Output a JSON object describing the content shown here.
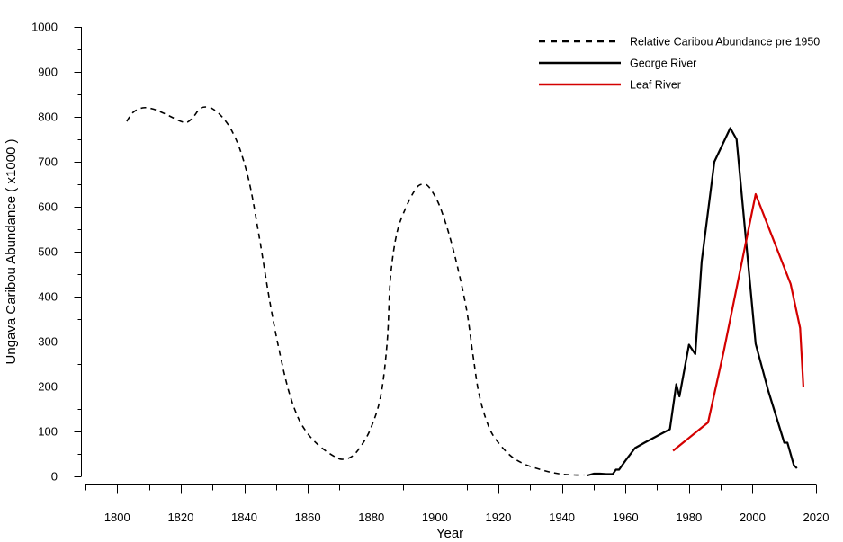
{
  "chart_data": {
    "type": "line",
    "title": "",
    "xlabel": "Year",
    "ylabel": "Ungava Caribou Abundance ( x1000 )",
    "xlim": [
      1790,
      2020
    ],
    "ylim": [
      0,
      1000
    ],
    "x_ticks": [
      1800,
      1820,
      1840,
      1860,
      1880,
      1900,
      1920,
      1940,
      1960,
      1980,
      2000,
      2020
    ],
    "y_ticks": [
      0,
      100,
      200,
      300,
      400,
      500,
      600,
      700,
      800,
      900,
      1000
    ],
    "grid": false,
    "legend_position": "top-right",
    "series": [
      {
        "name": "Relative Caribou Abundance pre 1950",
        "color": "#000000",
        "style": "dashed",
        "smooth": true,
        "points": [
          [
            1803,
            790
          ],
          [
            1805,
            810
          ],
          [
            1808,
            820
          ],
          [
            1811,
            818
          ],
          [
            1814,
            810
          ],
          [
            1817,
            800
          ],
          [
            1820,
            790
          ],
          [
            1822,
            788
          ],
          [
            1824,
            800
          ],
          [
            1826,
            818
          ],
          [
            1828,
            822
          ],
          [
            1830,
            818
          ],
          [
            1833,
            800
          ],
          [
            1836,
            770
          ],
          [
            1839,
            720
          ],
          [
            1842,
            640
          ],
          [
            1845,
            520
          ],
          [
            1848,
            390
          ],
          [
            1851,
            280
          ],
          [
            1854,
            190
          ],
          [
            1857,
            130
          ],
          [
            1860,
            95
          ],
          [
            1863,
            72
          ],
          [
            1866,
            55
          ],
          [
            1869,
            42
          ],
          [
            1871,
            38
          ],
          [
            1874,
            45
          ],
          [
            1877,
            70
          ],
          [
            1880,
            110
          ],
          [
            1883,
            180
          ],
          [
            1885,
            300
          ],
          [
            1886,
            440
          ],
          [
            1888,
            540
          ],
          [
            1891,
            600
          ],
          [
            1894,
            640
          ],
          [
            1896,
            650
          ],
          [
            1898,
            645
          ],
          [
            1901,
            610
          ],
          [
            1904,
            550
          ],
          [
            1907,
            470
          ],
          [
            1910,
            370
          ],
          [
            1912,
            270
          ],
          [
            1914,
            180
          ],
          [
            1917,
            110
          ],
          [
            1920,
            75
          ],
          [
            1924,
            45
          ],
          [
            1928,
            28
          ],
          [
            1932,
            18
          ],
          [
            1936,
            10
          ],
          [
            1940,
            5
          ],
          [
            1944,
            3
          ],
          [
            1947,
            3
          ]
        ]
      },
      {
        "name": "George River",
        "color": "#000000",
        "style": "solid",
        "points": [
          [
            1948,
            2
          ],
          [
            1950,
            6
          ],
          [
            1952,
            6
          ],
          [
            1954,
            5
          ],
          [
            1956,
            5
          ],
          [
            1957,
            15
          ],
          [
            1958,
            15
          ],
          [
            1960,
            35
          ],
          [
            1963,
            63
          ],
          [
            1966,
            75
          ],
          [
            1970,
            90
          ],
          [
            1974,
            105
          ],
          [
            1976,
            205
          ],
          [
            1977,
            178
          ],
          [
            1980,
            293
          ],
          [
            1982,
            272
          ],
          [
            1984,
            478
          ],
          [
            1988,
            700
          ],
          [
            1993,
            775
          ],
          [
            1995,
            750
          ],
          [
            2001,
            295
          ],
          [
            2005,
            190
          ],
          [
            2010,
            75
          ],
          [
            2011,
            75
          ],
          [
            2013,
            25
          ],
          [
            2014,
            18
          ]
        ]
      },
      {
        "name": "Leaf River",
        "color": "#d40000",
        "style": "solid",
        "points": [
          [
            1975,
            57
          ],
          [
            1982,
            97
          ],
          [
            1986,
            120
          ],
          [
            1991,
            280
          ],
          [
            2001,
            628
          ],
          [
            2012,
            428
          ],
          [
            2015,
            330
          ],
          [
            2016,
            200
          ]
        ]
      }
    ]
  }
}
